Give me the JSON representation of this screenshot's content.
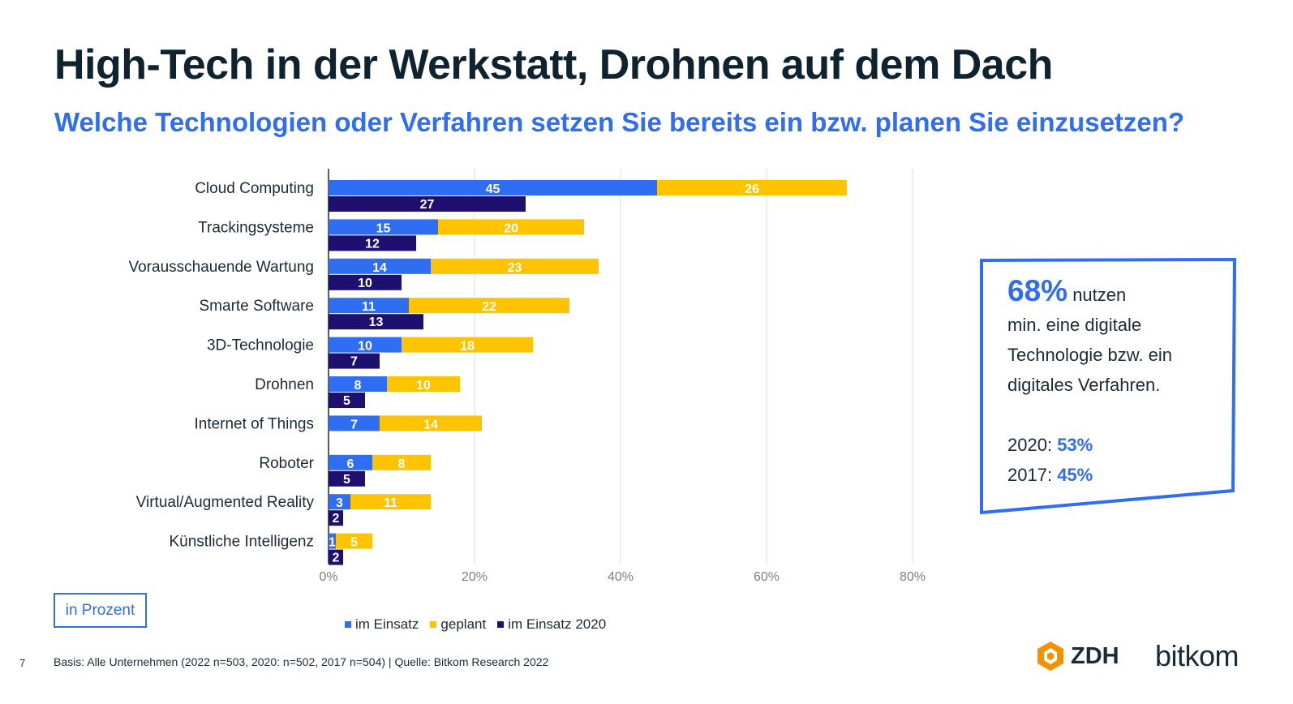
{
  "header": {
    "title": "High-Tech in der Werkstatt, Drohnen auf dem Dach",
    "subtitle": "Welche Technologien oder Verfahren setzen Sie bereits ein bzw. planen Sie einzusetzen?"
  },
  "chart_data": {
    "type": "bar",
    "orientation": "horizontal",
    "stacked_groups": [
      [
        "im Einsatz",
        "geplant"
      ],
      [
        "im Einsatz 2020"
      ]
    ],
    "categories": [
      "Cloud Computing",
      "Trackingsysteme",
      "Vorausschauende Wartung",
      "Smarte Software",
      "3D-Technologie",
      "Drohnen",
      "Internet of Things",
      "Roboter",
      "Virtual/Augmented Reality",
      "Künstliche Intelligenz"
    ],
    "series": [
      {
        "name": "im Einsatz",
        "color": "#2f6df2",
        "values": [
          45,
          15,
          14,
          11,
          10,
          8,
          7,
          6,
          3,
          1
        ]
      },
      {
        "name": "geplant",
        "color": "#ffc300",
        "values": [
          26,
          20,
          23,
          22,
          18,
          10,
          14,
          8,
          11,
          5
        ]
      },
      {
        "name": "im Einsatz 2020",
        "color": "#1e1070",
        "values": [
          27,
          12,
          10,
          13,
          7,
          5,
          null,
          5,
          2,
          2
        ]
      }
    ],
    "xlim": [
      0,
      80
    ],
    "xticks": [
      "0%",
      "20%",
      "40%",
      "60%",
      "80%"
    ],
    "grid": true,
    "legend_position": "bottom"
  },
  "unit_note": "in Prozent",
  "kpi": {
    "value": "68%",
    "line1_rest": "nutzen",
    "line2": "min. eine digitale",
    "line3": "Technologie bzw. ein",
    "line4": "digitales Verfahren.",
    "y2020_label": "2020:",
    "y2020_value": "53%",
    "y2017_label": "2017:",
    "y2017_value": "45%"
  },
  "footer": {
    "page": "7",
    "basis": "Basis: Alle Unternehmen (2022 n=503, 2020: n=502, 2017 n=504) | Quelle: Bitkom Research 2022",
    "logo_zdh": "ZDH",
    "logo_bitkom": "bitkom"
  }
}
